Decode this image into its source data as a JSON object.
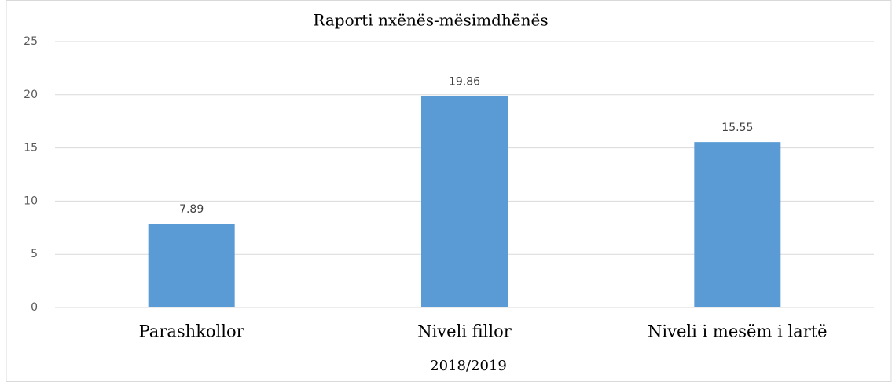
{
  "chart_data": {
    "type": "bar",
    "title": "Raporti nxënës-mësimdhënës",
    "x_label": "2018/2019",
    "categories": [
      "Parashkollor",
      "Niveli fillor",
      "Niveli i mesëm i lartë"
    ],
    "values": [
      7.89,
      19.86,
      15.55
    ],
    "color": "#5b9bd5",
    "ylim": [
      0,
      25
    ],
    "yticks": [
      0,
      5,
      10,
      15,
      20,
      25
    ],
    "grid": true
  }
}
